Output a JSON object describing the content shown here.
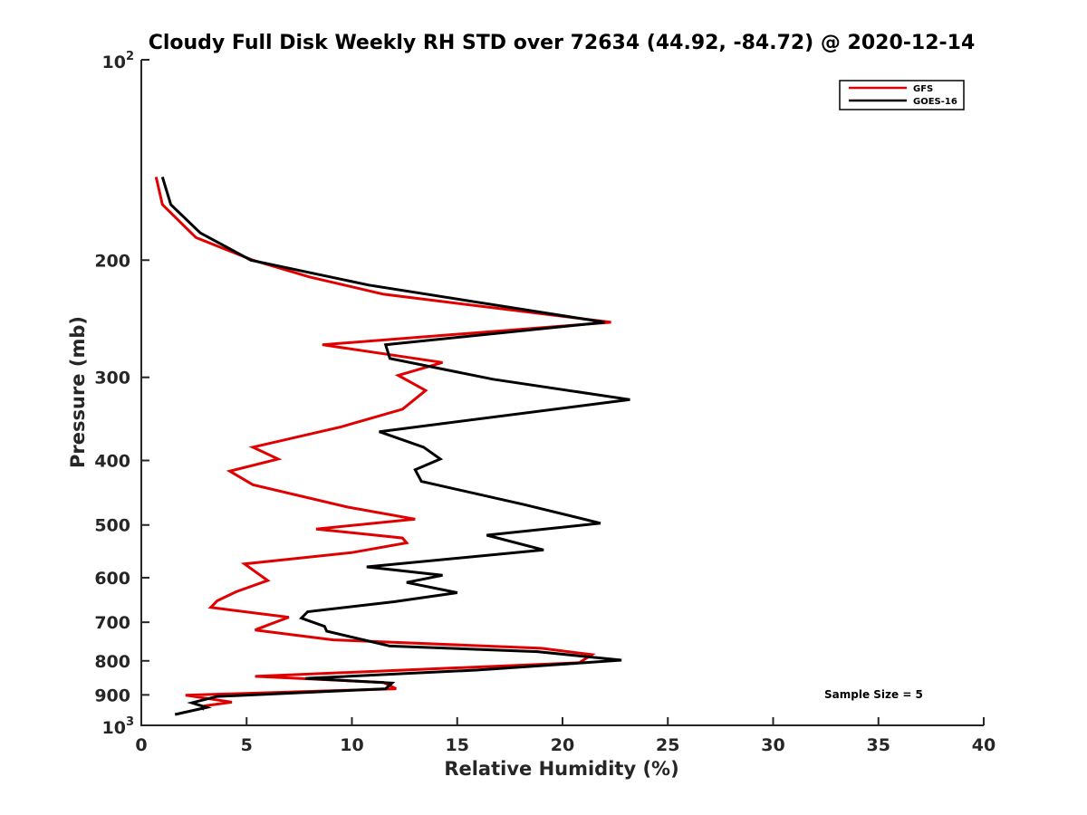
{
  "chart_data": {
    "type": "line",
    "title": "Cloudy Full Disk Weekly RH STD over 72634 (44.92, -84.72) @ 2020-12-14",
    "xlabel": "Relative Humidity (%)",
    "ylabel": "Pressure (mb)",
    "xlim": [
      0,
      40
    ],
    "ylim": [
      100,
      1000
    ],
    "y_scale": "log",
    "y_reversed": true,
    "grid": false,
    "legend_position": "top-right",
    "x_ticks": [
      0,
      5,
      10,
      15,
      20,
      25,
      30,
      35,
      40
    ],
    "x_tick_labels": [
      "0",
      "5",
      "10",
      "15",
      "20",
      "25",
      "30",
      "35",
      "40"
    ],
    "y_ticks": [
      200,
      300,
      400,
      500,
      600,
      700,
      800,
      900
    ],
    "y_tick_labels": [
      "200",
      "300",
      "400",
      "500",
      "600",
      "700",
      "800",
      "900"
    ],
    "y_min_label": {
      "base": "10",
      "exp": "2"
    },
    "y_max_label": {
      "base": "10",
      "exp": "3"
    },
    "annotation": "Sample Size = 5",
    "series": [
      {
        "name": "GFS",
        "color": "#e00000",
        "points": [
          [
            0.7,
            150
          ],
          [
            1.0,
            165
          ],
          [
            2.6,
            185
          ],
          [
            5.3,
            200
          ],
          [
            8.0,
            212
          ],
          [
            11.5,
            225
          ],
          [
            22.3,
            248
          ],
          [
            8.6,
            268
          ],
          [
            14.3,
            285
          ],
          [
            12.2,
            298
          ],
          [
            13.5,
            314
          ],
          [
            12.4,
            335
          ],
          [
            9.5,
            356
          ],
          [
            5.3,
            382
          ],
          [
            6.5,
            398
          ],
          [
            4.2,
            415
          ],
          [
            5.3,
            435
          ],
          [
            9.8,
            470
          ],
          [
            13.0,
            490
          ],
          [
            8.3,
            507
          ],
          [
            12.4,
            523
          ],
          [
            12.6,
            532
          ],
          [
            10.0,
            550
          ],
          [
            4.9,
            572
          ],
          [
            6.0,
            606
          ],
          [
            4.5,
            630
          ],
          [
            3.6,
            650
          ],
          [
            3.3,
            665
          ],
          [
            7.0,
            688
          ],
          [
            6.0,
            707
          ],
          [
            5.4,
            719
          ],
          [
            9.1,
            744
          ],
          [
            19.0,
            766
          ],
          [
            21.4,
            783
          ],
          [
            20.8,
            805
          ],
          [
            5.4,
            844
          ],
          [
            11.5,
            862
          ],
          [
            12.1,
            881
          ],
          [
            2.1,
            901
          ],
          [
            4.3,
            923
          ],
          [
            3.0,
            935
          ],
          [
            2.9,
            948
          ]
        ]
      },
      {
        "name": "GOES-16",
        "color": "#000000",
        "points": [
          [
            1.0,
            150
          ],
          [
            1.4,
            165
          ],
          [
            2.8,
            182
          ],
          [
            5.2,
            200
          ],
          [
            10.8,
            218
          ],
          [
            22.0,
            248
          ],
          [
            11.6,
            268
          ],
          [
            11.8,
            281
          ],
          [
            16.7,
            302
          ],
          [
            23.2,
            324
          ],
          [
            11.3,
            362
          ],
          [
            13.4,
            382
          ],
          [
            14.2,
            398
          ],
          [
            13.0,
            413
          ],
          [
            13.3,
            430
          ],
          [
            18.2,
            466
          ],
          [
            21.8,
            497
          ],
          [
            16.4,
            518
          ],
          [
            19.1,
            545
          ],
          [
            10.7,
            578
          ],
          [
            14.3,
            595
          ],
          [
            12.6,
            610
          ],
          [
            15.0,
            632
          ],
          [
            12.0,
            652
          ],
          [
            7.9,
            675
          ],
          [
            7.6,
            690
          ],
          [
            8.7,
            710
          ],
          [
            8.8,
            722
          ],
          [
            11.8,
            760
          ],
          [
            18.8,
            775
          ],
          [
            22.8,
            798
          ],
          [
            15.9,
            826
          ],
          [
            7.8,
            850
          ],
          [
            11.9,
            864
          ],
          [
            11.6,
            881
          ],
          [
            3.6,
            905
          ],
          [
            2.4,
            925
          ],
          [
            3.1,
            940
          ],
          [
            1.6,
            963
          ]
        ]
      }
    ]
  }
}
